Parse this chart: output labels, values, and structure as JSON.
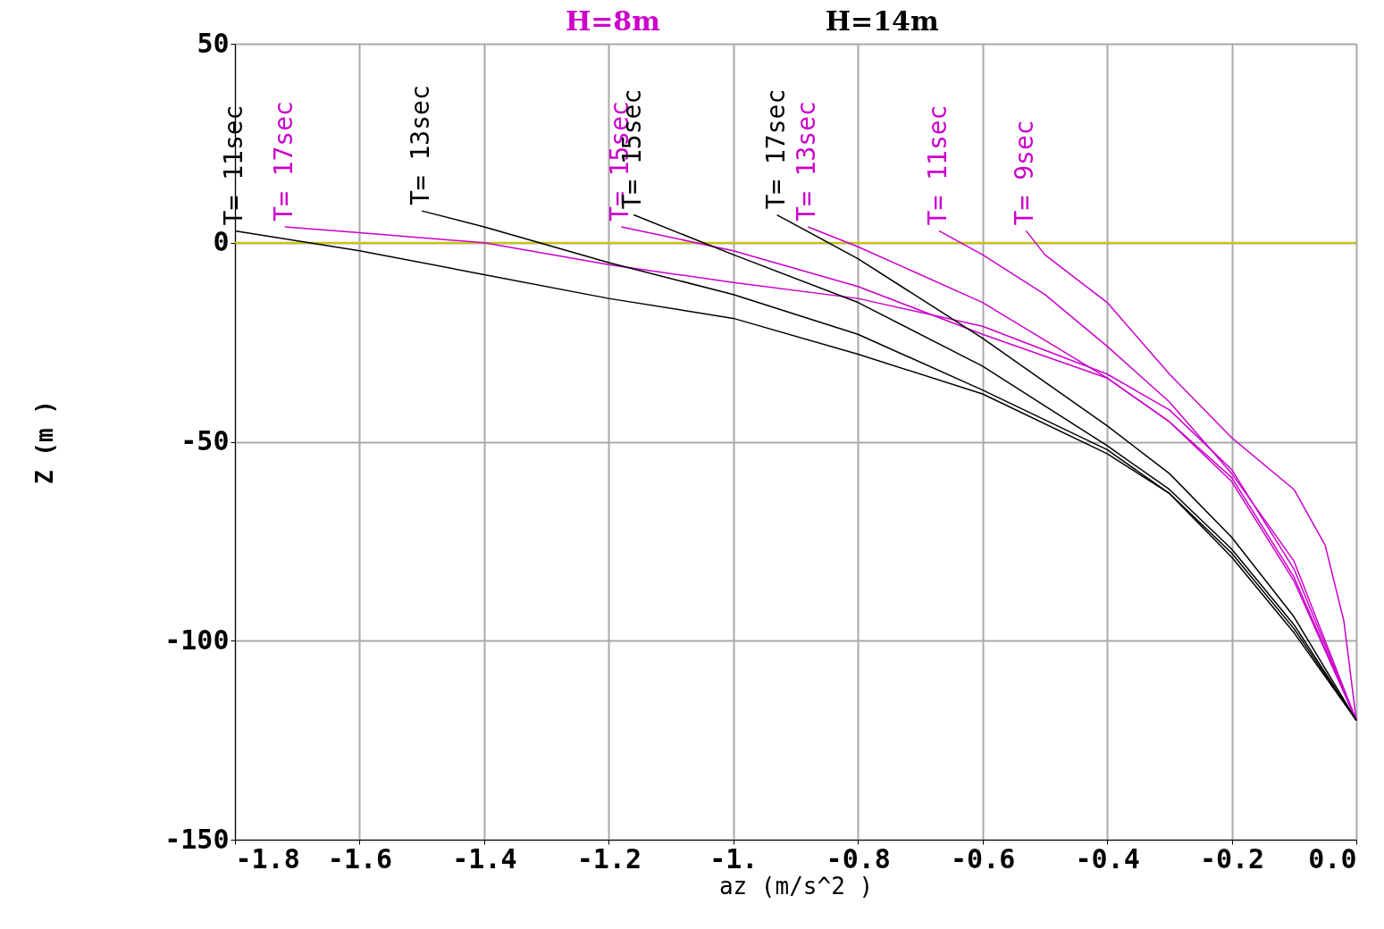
{
  "chart_data": {
    "type": "line",
    "xlabel": "az  (m/s^2 )",
    "ylabel": "Z (m )",
    "annotations": [
      "H=8m",
      "H=14m"
    ],
    "xlim": [
      -1.8,
      0.0
    ],
    "ylim": [
      -150,
      50
    ],
    "xticks": [
      -1.8,
      -1.6,
      -1.4,
      -1.2,
      {
        "value": -1.0,
        "label": "-1."
      },
      -0.8,
      -0.6,
      -0.4,
      -0.2,
      {
        "value": 0.0,
        "label": "0.0"
      }
    ],
    "yticks": [
      -150,
      -100,
      -50,
      0,
      50
    ],
    "grid": true,
    "marker": "none",
    "line_style": "solid",
    "ref_lines": [
      {
        "axis": "y",
        "value": 0,
        "color": "#c8c800"
      }
    ],
    "series": [
      {
        "name": "T= 17sec",
        "color": "#cc00cc",
        "x": [
          -1.72,
          -1.6,
          -1.4,
          -1.2,
          -1.0,
          -0.8,
          -0.6,
          -0.4,
          -0.3,
          -0.2,
          -0.1,
          0.0
        ],
        "values": [
          4,
          2.5,
          0,
          -5.5,
          -10,
          -14,
          -21,
          -33,
          -42,
          -57,
          -82,
          -120
        ]
      },
      {
        "name": "T= 15sec",
        "color": "#cc00cc",
        "x": [
          -1.18,
          -1.0,
          -0.8,
          -0.6,
          -0.4,
          -0.3,
          -0.2,
          -0.1,
          0.0
        ],
        "values": [
          4,
          -2,
          -11,
          -23,
          -34,
          -45,
          -59,
          -84,
          -120
        ]
      },
      {
        "name": "T= 13sec",
        "color": "#cc00cc",
        "x": [
          -0.88,
          -0.8,
          -0.6,
          -0.4,
          -0.3,
          -0.2,
          -0.1,
          0.0
        ],
        "values": [
          4,
          -1,
          -15,
          -34,
          -45,
          -60,
          -85,
          -120
        ]
      },
      {
        "name": "T= 11sec",
        "color": "#cc00cc",
        "x": [
          -0.67,
          -0.6,
          -0.5,
          -0.4,
          -0.3,
          -0.2,
          -0.1,
          0.0
        ],
        "values": [
          3,
          -3,
          -13,
          -26,
          -40,
          -58,
          -80,
          -120
        ]
      },
      {
        "name": "T= 9sec",
        "color": "#cc00cc",
        "x": [
          -0.53,
          -0.5,
          -0.4,
          -0.3,
          -0.2,
          -0.1,
          -0.05,
          -0.02,
          0.0
        ],
        "values": [
          3,
          -3,
          -15,
          -33,
          -49,
          -62,
          -76,
          -95,
          -120
        ]
      },
      {
        "name": "T= 11sec",
        "color": "#000000",
        "x": [
          -1.8,
          -1.6,
          -1.4,
          -1.2,
          -1.0,
          -0.8,
          -0.6,
          -0.4,
          -0.3,
          -0.2,
          -0.1,
          0.0
        ],
        "values": [
          3,
          -2,
          -8,
          -14,
          -19,
          -28,
          -38,
          -53,
          -63,
          -79,
          -98,
          -120
        ]
      },
      {
        "name": "T= 13sec",
        "color": "#000000",
        "x": [
          -1.5,
          -1.4,
          -1.2,
          -1.0,
          -0.8,
          -0.6,
          -0.4,
          -0.3,
          -0.2,
          -0.1,
          0.0
        ],
        "values": [
          8,
          4,
          -5,
          -13,
          -23,
          -37,
          -52,
          -63,
          -78,
          -97,
          -120
        ]
      },
      {
        "name": "T= 15sec",
        "color": "#000000",
        "x": [
          -1.16,
          -1.0,
          -0.8,
          -0.6,
          -0.4,
          -0.3,
          -0.2,
          -0.1,
          0.0
        ],
        "values": [
          7,
          -3,
          -15,
          -31,
          -51,
          -62,
          -77,
          -96,
          -120
        ]
      },
      {
        "name": "T= 17sec",
        "color": "#000000",
        "x": [
          -0.93,
          -0.8,
          -0.6,
          -0.4,
          -0.3,
          -0.2,
          -0.1,
          0.0
        ],
        "values": [
          7,
          -4,
          -24,
          -46,
          -58,
          -74,
          -94,
          -120
        ]
      }
    ]
  }
}
